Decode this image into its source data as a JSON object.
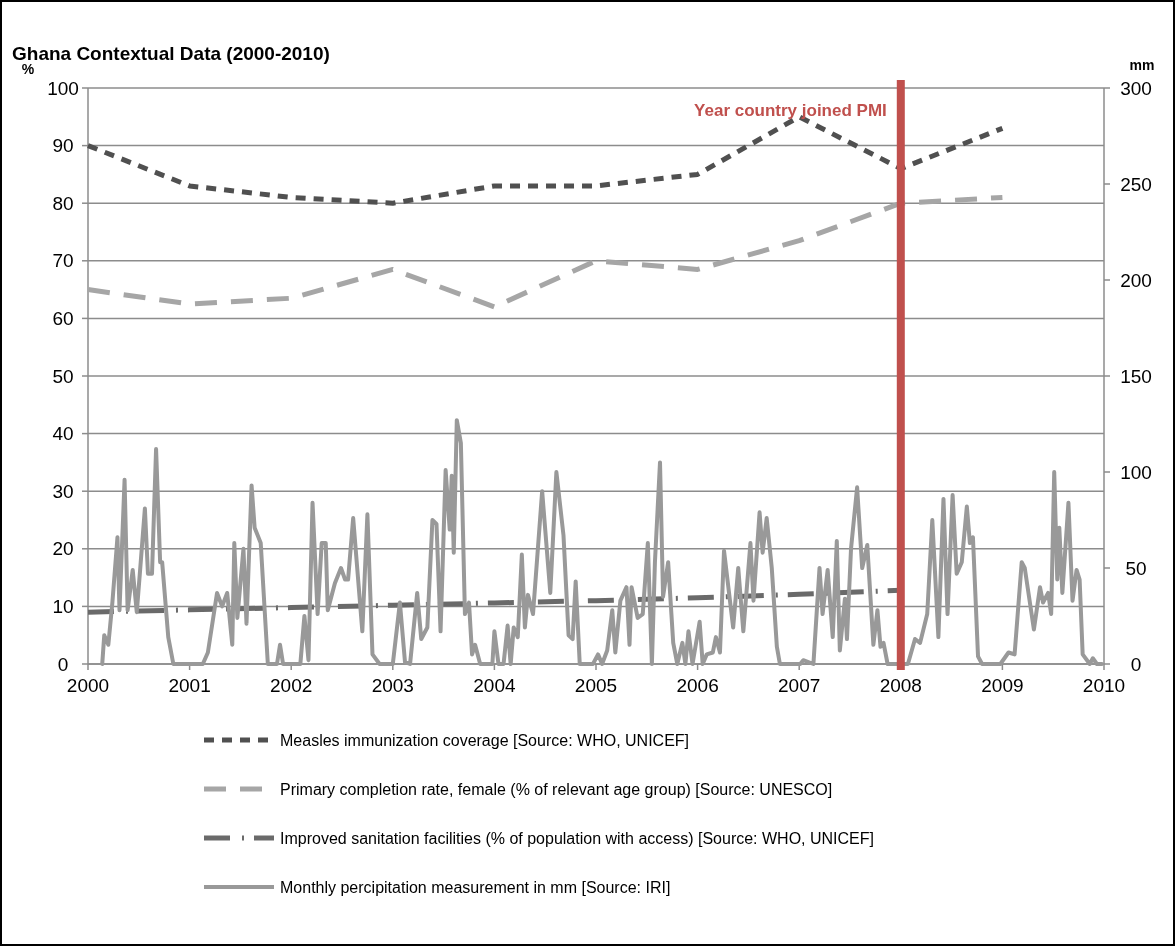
{
  "chart_data": {
    "type": "line",
    "title": "Ghana Contextual Data (2000-2010)",
    "ylabel": "%",
    "y2label": "mm",
    "xlim": [
      2000,
      2010
    ],
    "xticks": [
      2000,
      2001,
      2002,
      2003,
      2004,
      2005,
      2006,
      2007,
      2008,
      2009,
      2010
    ],
    "ylim": [
      0,
      100
    ],
    "yticks": [
      0,
      10,
      20,
      30,
      40,
      50,
      60,
      70,
      80,
      90,
      100
    ],
    "y2lim": [
      0,
      300
    ],
    "y2ticks": [
      0,
      50,
      100,
      150,
      200,
      250,
      300
    ],
    "grid": "y",
    "legend": "bottom",
    "marker": "none",
    "ref_lines": [
      {
        "axis": "x",
        "value": 2008,
        "label": "Year country joined PMI",
        "color": "#c0504d"
      }
    ],
    "series": [
      {
        "name": "Measles immunization coverage [Source: WHO, UNICEF]",
        "color": "#505050",
        "line_style": "dashed",
        "x": [
          2000,
          2001,
          2002,
          2003,
          2004,
          2005,
          2006,
          2007,
          2008,
          2009
        ],
        "values": [
          90,
          83,
          81,
          80,
          83,
          83,
          85,
          95,
          86,
          93
        ]
      },
      {
        "name": "Primary completion rate, female (% of relevant age group) [Source: UNESCO]",
        "color": "#a6a6a6",
        "line_style": "dashed",
        "x": [
          2000,
          2001,
          2002,
          2003,
          2004,
          2005,
          2006,
          2007,
          2008,
          2009
        ],
        "values": [
          65,
          62.5,
          63.5,
          68.5,
          62,
          70,
          68.5,
          73.5,
          80,
          81
        ]
      },
      {
        "name": "Improved sanitation facilities (% of population with access) [Source: WHO, UNICEF]",
        "color": "#6a6a6a",
        "line_style": "dashed",
        "x": [
          2000,
          2001,
          2002,
          2003,
          2004,
          2005,
          2006,
          2007,
          2008
        ],
        "values": [
          9,
          9.4,
          9.8,
          10.2,
          10.6,
          11,
          11.5,
          12.1,
          12.8
        ]
      },
      {
        "name": "Monthly percipitation measurement in mm [Source: IRI]",
        "color": "#999999",
        "line_style": "solid",
        "axis": "y2",
        "x": [
          2000.14,
          2000.16,
          2000.2,
          2000.24,
          2000.29,
          2000.31,
          2000.36,
          2000.39,
          2000.44,
          2000.48,
          2000.51,
          2000.56,
          2000.59,
          2000.63,
          2000.67,
          2000.71,
          2000.73,
          2000.79,
          2000.84,
          2001.13,
          2001.18,
          2001.27,
          2001.32,
          2001.37,
          2001.42,
          2001.44,
          2001.47,
          2001.53,
          2001.56,
          2001.61,
          2001.64,
          2001.7,
          2001.77,
          2001.86,
          2001.89,
          2001.92,
          2002.09,
          2002.13,
          2002.17,
          2002.21,
          2002.26,
          2002.3,
          2002.34,
          2002.36,
          2002.43,
          2002.49,
          2002.53,
          2002.56,
          2002.61,
          2002.7,
          2002.75,
          2002.8,
          2002.87,
          2003.0,
          2003.07,
          2003.12,
          2003.17,
          2003.24,
          2003.28,
          2003.34,
          2003.39,
          2003.43,
          2003.47,
          2003.52,
          2003.56,
          2003.58,
          2003.6,
          2003.63,
          2003.67,
          2003.71,
          2003.75,
          2003.78,
          2003.81,
          2003.86,
          2003.98,
          2004.0,
          2004.04,
          2004.09,
          2004.13,
          2004.16,
          2004.19,
          2004.23,
          2004.27,
          2004.3,
          2004.33,
          2004.38,
          2004.47,
          2004.55,
          2004.61,
          2004.68,
          2004.73,
          2004.77,
          2004.8,
          2004.84,
          2004.97,
          2005.02,
          2005.06,
          2005.11,
          2005.16,
          2005.19,
          2005.24,
          2005.3,
          2005.33,
          2005.35,
          2005.41,
          2005.46,
          2005.51,
          2005.55,
          2005.58,
          2005.63,
          2005.66,
          2005.71,
          2005.76,
          2005.8,
          2005.85,
          2005.88,
          2005.91,
          2005.95,
          2006.02,
          2006.05,
          2006.09,
          2006.15,
          2006.18,
          2006.22,
          2006.26,
          2006.35,
          2006.4,
          2006.45,
          2006.52,
          2006.55,
          2006.61,
          2006.64,
          2006.68,
          2006.73,
          2006.78,
          2006.81,
          2007.01,
          2007.04,
          2007.14,
          2007.2,
          2007.23,
          2007.28,
          2007.33,
          2007.37,
          2007.4,
          2007.45,
          2007.47,
          2007.51,
          2007.57,
          2007.62,
          2007.67,
          2007.73,
          2007.77,
          2007.8,
          2007.83,
          2007.87,
          2008.07,
          2008.14,
          2008.19,
          2008.26,
          2008.31,
          2008.37,
          2008.42,
          2008.46,
          2008.51,
          2008.55,
          2008.6,
          2008.65,
          2008.68,
          2008.71,
          2008.76,
          2008.8,
          2008.98,
          2009.06,
          2009.12,
          2009.19,
          2009.22,
          2009.31,
          2009.37,
          2009.4,
          2009.45,
          2009.48,
          2009.51,
          2009.54,
          2009.56,
          2009.59,
          2009.65,
          2009.69,
          2009.73,
          2009.76,
          2009.79,
          2009.86,
          2009.89,
          2009.93,
          2009.98
        ],
        "values": [
          0,
          15,
          10,
          32,
          66,
          28,
          96,
          28,
          49,
          27,
          47,
          81,
          47,
          47,
          112,
          53,
          53,
          14,
          0,
          0,
          6,
          37,
          30,
          37,
          10,
          63,
          24,
          60,
          21,
          93,
          71,
          63,
          0,
          0,
          10,
          0,
          0,
          25,
          2,
          84,
          26,
          63,
          63,
          28,
          42,
          50,
          44,
          44,
          76,
          17,
          78,
          5,
          0,
          0,
          32,
          1,
          0,
          37,
          13,
          19,
          75,
          73,
          17,
          101,
          70,
          98,
          58,
          127,
          115,
          26,
          32,
          5,
          10,
          0,
          0,
          17,
          0,
          0,
          20,
          0,
          19,
          14,
          57,
          19,
          36,
          26,
          90,
          37,
          100,
          67,
          15,
          13,
          43,
          0,
          0,
          5,
          0,
          7,
          28,
          6,
          33,
          40,
          10,
          40,
          24,
          26,
          63,
          0,
          53,
          105,
          35,
          53,
          11,
          0,
          11,
          0,
          17,
          0,
          22,
          0,
          5,
          6,
          14,
          6,
          59,
          19,
          50,
          17,
          63,
          33,
          79,
          58,
          76,
          50,
          9,
          0,
          0,
          2,
          0,
          50,
          26,
          49,
          14,
          64,
          7,
          34,
          13,
          60,
          92,
          50,
          62,
          10,
          28,
          9,
          11,
          0,
          0,
          13,
          11,
          26,
          75,
          14,
          86,
          26,
          88,
          47,
          53,
          82,
          63,
          66,
          4,
          0,
          0,
          6,
          5,
          53,
          50,
          18,
          40,
          32,
          37,
          26,
          100,
          44,
          71,
          37,
          84,
          33,
          49,
          44,
          5,
          0,
          3,
          0,
          0
        ]
      }
    ]
  }
}
